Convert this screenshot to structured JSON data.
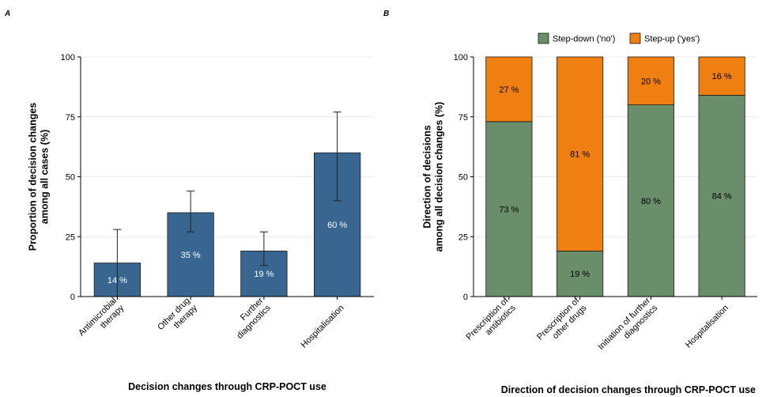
{
  "chart_data": [
    {
      "type": "bar",
      "panel": "A",
      "categories": [
        "Antimicrobial\ntherapy",
        "Other drug\ntherapy",
        "Further\ndiagnostics",
        "Hospitalisation"
      ],
      "values": [
        14,
        35,
        19,
        60
      ],
      "value_labels": [
        "14 %",
        "35 %",
        "19 %",
        "60 %"
      ],
      "error_low": [
        0,
        27,
        13,
        40
      ],
      "error_high": [
        28,
        44,
        27,
        77
      ],
      "xlabel": "Decision changes through CRP-POCT use",
      "ylabel": "Proportion of decision changes\namong all cases (%)",
      "ylim": [
        0,
        100
      ],
      "yticks": [
        0,
        25,
        50,
        75,
        100
      ],
      "colors": {
        "bar": "#396690",
        "bar_label": "#ffffff"
      },
      "grid": true
    },
    {
      "type": "bar",
      "stacked": true,
      "panel": "B",
      "categories": [
        "Prescription of\nantibiotics",
        "Prescription of\nother drugs",
        "Initiation of further\ndiagnostics",
        "Hospitalisation"
      ],
      "series": [
        {
          "name": "Step-down ('no')",
          "values": [
            73,
            19,
            80,
            84
          ],
          "labels": [
            "73 %",
            "19 %",
            "80 %",
            "84 %"
          ],
          "color": "#6a8e6a"
        },
        {
          "name": "Step-up ('yes')",
          "values": [
            27,
            81,
            20,
            16
          ],
          "labels": [
            "27 %",
            "81 %",
            "20 %",
            "16 %"
          ],
          "color": "#ef7f10"
        }
      ],
      "xlabel": "Direction of decision changes through CRP-POCT use",
      "ylabel": "Direction of decisions\namong all decision changes (%)",
      "ylim": [
        0,
        100
      ],
      "yticks": [
        0,
        25,
        50,
        75,
        100
      ],
      "legend_position": "top",
      "grid": true
    }
  ]
}
